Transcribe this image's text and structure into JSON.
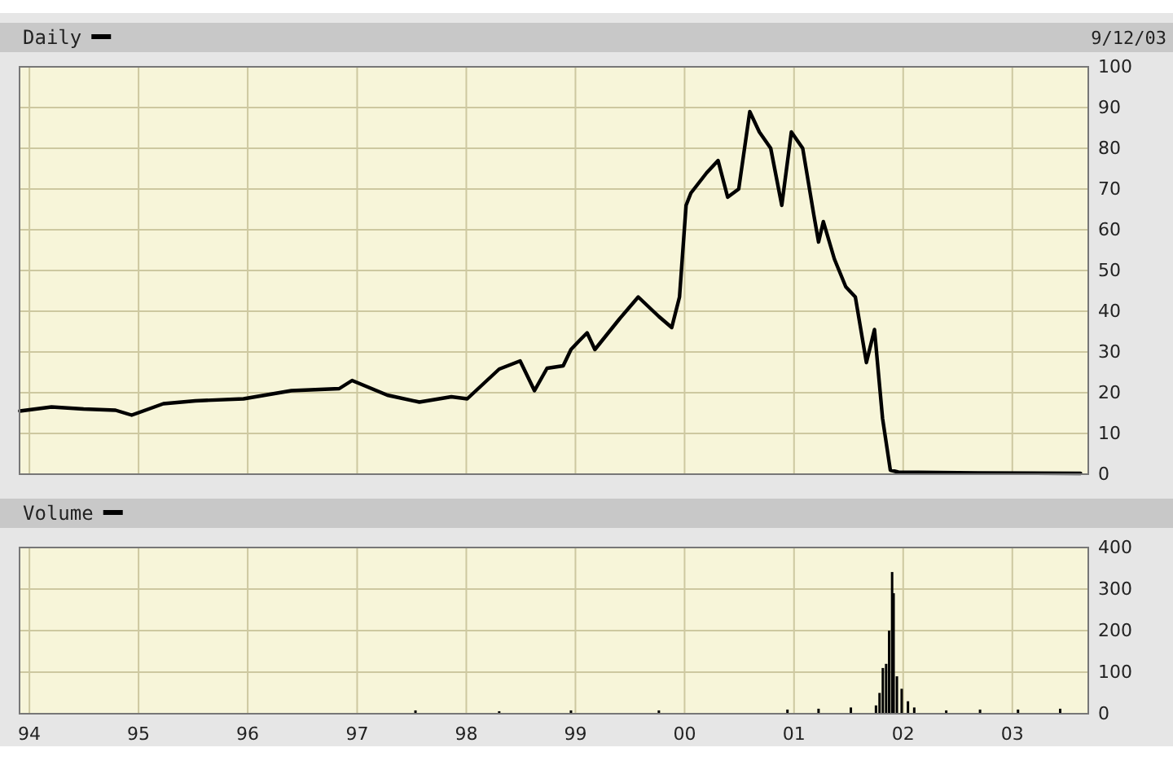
{
  "chart_data": [
    {
      "type": "line",
      "title": "Daily",
      "subtitle": "9/12/03",
      "xlim": [
        "1993-11-29",
        "2003-09-12"
      ],
      "xticks": [
        {
          "value": "1994-01-01",
          "label": null
        },
        {
          "value": "1995-01-01",
          "label": null
        },
        {
          "value": "1996-01-01",
          "label": null
        },
        {
          "value": "1997-01-01",
          "label": null
        },
        {
          "value": "1998-01-01",
          "label": null
        },
        {
          "value": "1999-01-01",
          "label": null
        },
        {
          "value": "2000-01-01",
          "label": null
        },
        {
          "value": "2001-01-01",
          "label": null
        },
        {
          "value": "2002-01-01",
          "label": null
        },
        {
          "value": "2003-01-01",
          "label": null
        }
      ],
      "ylim": [
        0,
        100
      ],
      "yticks": [
        0,
        10,
        20,
        30,
        40,
        50,
        60,
        70,
        80,
        90,
        100
      ],
      "grid": true,
      "tick_labels": "y",
      "x": [
        "1993-11-30",
        "1994-03-16",
        "1994-07-01",
        "1994-10-16",
        "1994-12-09",
        "1995-03-25",
        "1995-07-10",
        "1995-12-18",
        "1996-05-26",
        "1996-11-02",
        "1996-12-15",
        "1997-04-12",
        "1997-07-28",
        "1997-11-12",
        "1998-01-04",
        "1998-04-21",
        "1998-06-30",
        "1998-08-17",
        "1998-09-28",
        "1998-11-21",
        "1998-12-17",
        "1999-01-13",
        "1999-02-09",
        "1999-03-07",
        "1999-05-27",
        "1999-07-30",
        "1999-10-07",
        "1999-11-19",
        "1999-12-15",
        "2000-01-06",
        "2000-01-22",
        "2000-03-15",
        "2000-04-22",
        "2000-05-24",
        "2000-06-30",
        "2000-08-06",
        "2000-09-07",
        "2000-10-15",
        "2000-11-21",
        "2000-12-23",
        "2001-01-30",
        "2001-03-08",
        "2001-03-24",
        "2001-04-09",
        "2001-05-16",
        "2001-06-23",
        "2001-07-25",
        "2001-08-31",
        "2001-09-27",
        "2001-10-24",
        "2001-11-19",
        "2001-12-16",
        "2002-09-09",
        "2003-08-17"
      ],
      "series": [
        {
          "color": "#000000",
          "values": [
            15.5,
            16.5,
            16,
            15.7,
            14.5,
            17.3,
            18,
            18.5,
            20.5,
            21,
            23,
            19.4,
            17.7,
            19,
            18.5,
            25.8,
            27.8,
            20.5,
            26,
            26.6,
            30.6,
            32.7,
            34.7,
            30.6,
            38,
            43.5,
            38.7,
            36,
            43.5,
            66,
            69,
            74,
            77,
            68,
            70,
            89,
            84,
            80,
            66,
            84,
            80,
            63.7,
            57,
            62,
            52.8,
            46,
            43.5,
            27.4,
            35.5,
            13.7,
            1,
            0.5,
            0.3,
            0.2
          ]
        }
      ]
    },
    {
      "type": "bar",
      "title": "Volume",
      "xlim": [
        "1993-11-29",
        "2003-09-12"
      ],
      "xticks": [
        {
          "value": "1994-01-01",
          "label": "94"
        },
        {
          "value": "1995-01-01",
          "label": "95"
        },
        {
          "value": "1996-01-01",
          "label": "96"
        },
        {
          "value": "1997-01-01",
          "label": "97"
        },
        {
          "value": "1998-01-01",
          "label": "98"
        },
        {
          "value": "1999-01-01",
          "label": "99"
        },
        {
          "value": "2000-01-01",
          "label": "00"
        },
        {
          "value": "2001-01-01",
          "label": "01"
        },
        {
          "value": "2002-01-01",
          "label": "02"
        },
        {
          "value": "2003-01-01",
          "label": "03"
        }
      ],
      "ylim": [
        0,
        400
      ],
      "yticks": [
        0,
        100,
        200,
        300,
        400
      ],
      "grid": true,
      "x": [
        "1997-07-15",
        "1998-04-21",
        "1998-12-17",
        "1999-10-07",
        "2000-12-10",
        "2001-03-24",
        "2001-07-10",
        "2001-10-02",
        "2001-10-14",
        "2001-10-25",
        "2001-11-05",
        "2001-11-15",
        "2001-11-25",
        "2001-11-30",
        "2001-12-11",
        "2001-12-27",
        "2002-01-17",
        "2002-02-07",
        "2002-05-25",
        "2002-09-15",
        "2003-01-20",
        "2003-06-10"
      ],
      "series": [
        {
          "color": "#000000",
          "values": [
            8,
            6,
            8,
            8,
            10,
            12,
            15,
            20,
            50,
            110,
            120,
            200,
            341,
            290,
            90,
            60,
            30,
            15,
            8,
            10,
            10,
            12
          ]
        }
      ]
    }
  ]
}
